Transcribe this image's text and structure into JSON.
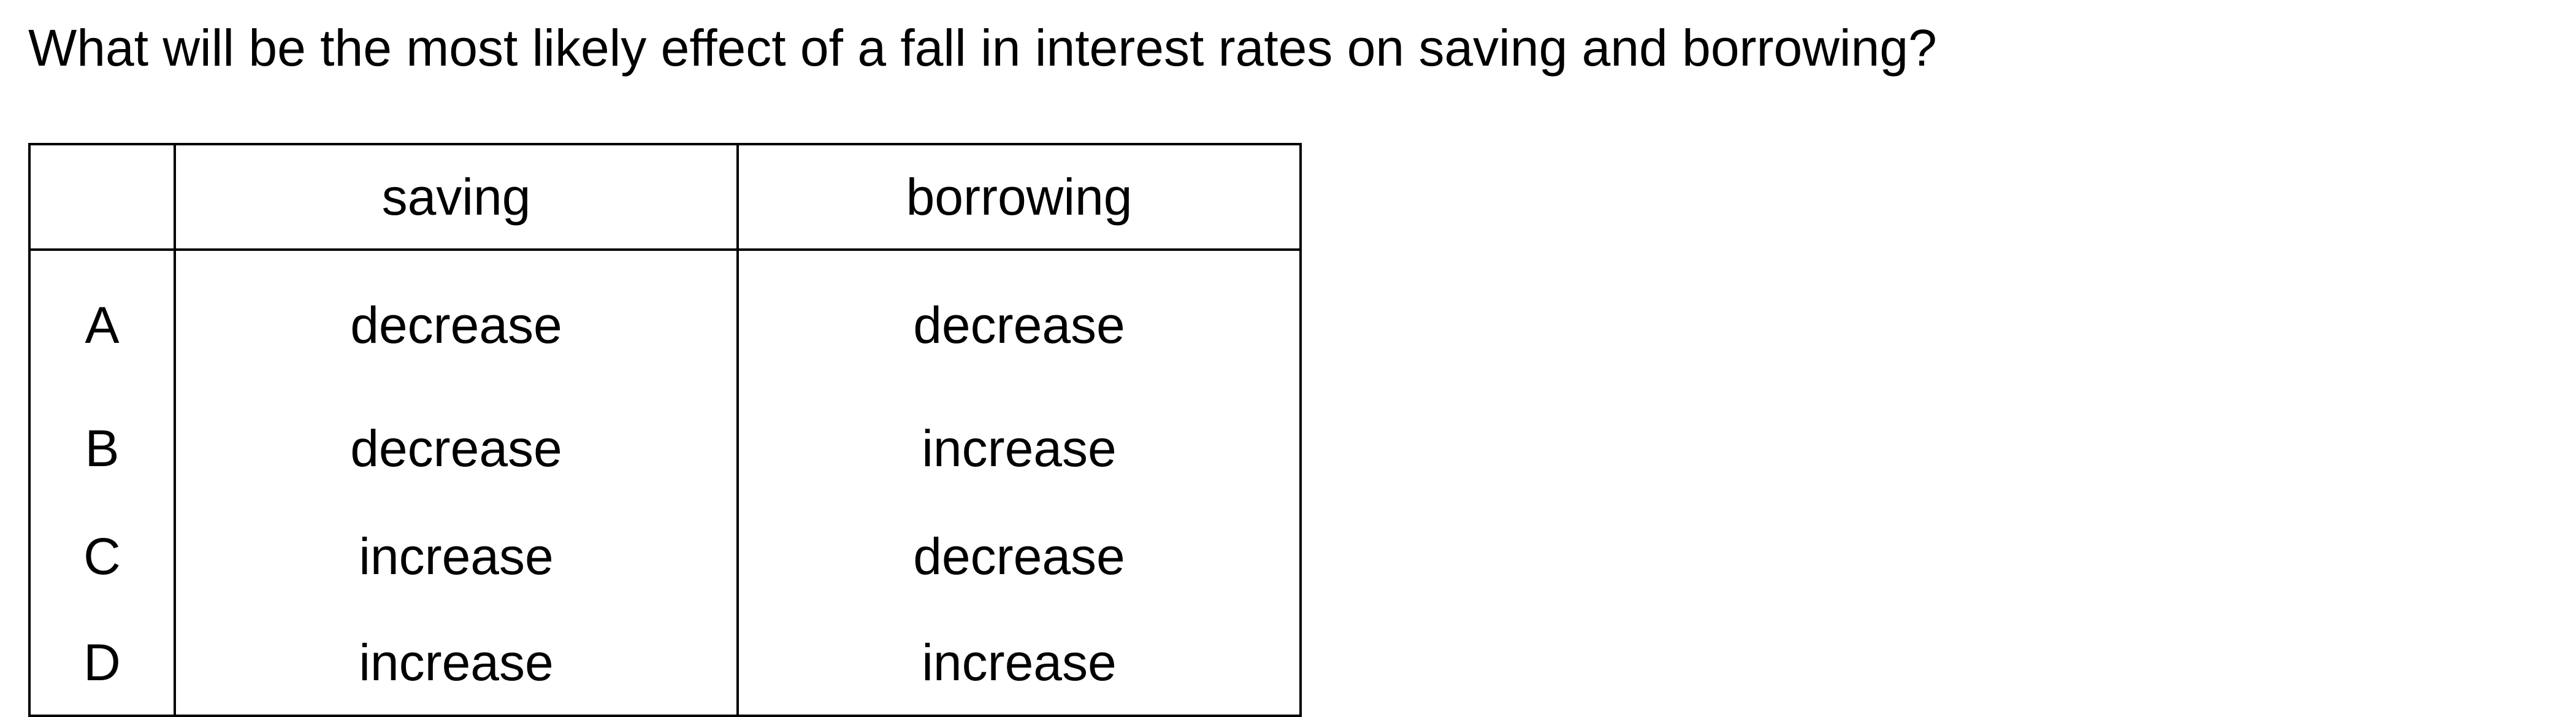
{
  "question": "What will be the most likely effect of a fall in interest rates on saving and borrowing?",
  "table": {
    "headers": [
      "",
      "saving",
      "borrowing"
    ],
    "rows": [
      {
        "option": "A",
        "saving": "decrease",
        "borrowing": "decrease"
      },
      {
        "option": "B",
        "saving": "decrease",
        "borrowing": "increase"
      },
      {
        "option": "C",
        "saving": "increase",
        "borrowing": "decrease"
      },
      {
        "option": "D",
        "saving": "increase",
        "borrowing": "increase"
      }
    ]
  }
}
